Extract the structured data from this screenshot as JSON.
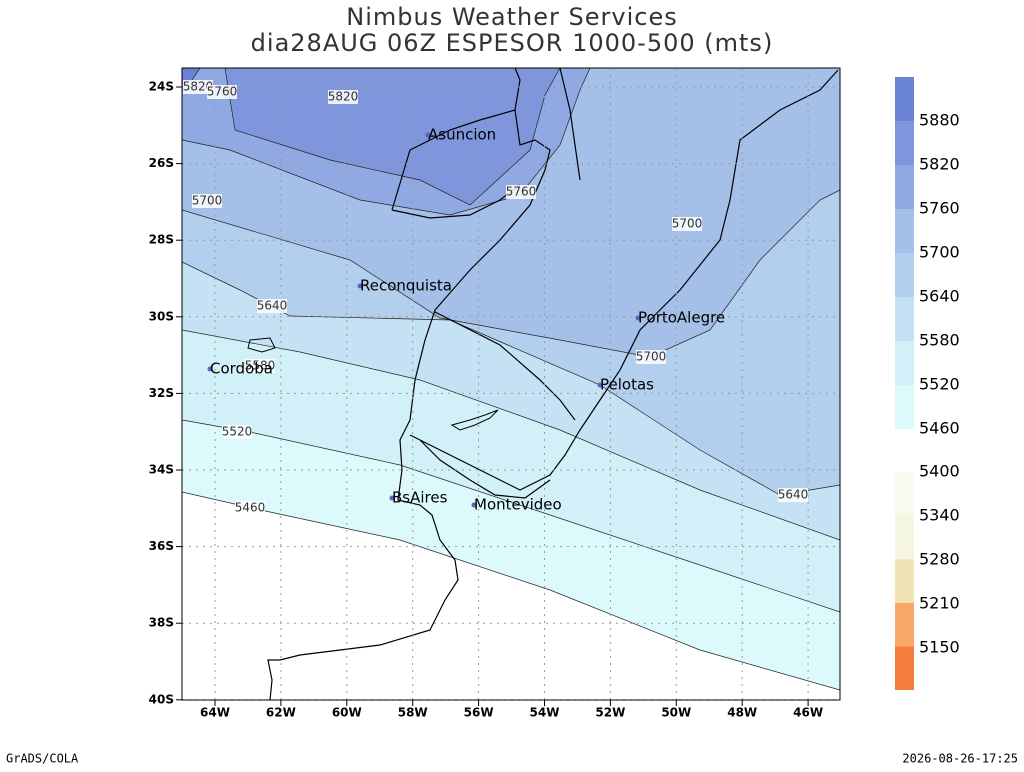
{
  "title": {
    "line1": "Nimbus Weather Services",
    "line2": "dia28AUG 06Z ESPESOR 1000-500 (mts)"
  },
  "lat_labels": [
    "24S",
    "26S",
    "28S",
    "30S",
    "32S",
    "34S",
    "36S",
    "38S",
    "40S"
  ],
  "lon_labels": [
    "64W",
    "62W",
    "60W",
    "58W",
    "56W",
    "54W",
    "52W",
    "50W",
    "48W",
    "46W"
  ],
  "cities": [
    {
      "name": "Asuncion"
    },
    {
      "name": "Reconquista"
    },
    {
      "name": "Cordoba"
    },
    {
      "name": "PortoAlegre"
    },
    {
      "name": "Pelotas"
    },
    {
      "name": "BsAires"
    },
    {
      "name": "Montevideo"
    }
  ],
  "contour_labels": [
    "5820",
    "5760",
    "5820",
    "5700",
    "5760",
    "5700",
    "5640",
    "5580",
    "5700",
    "5520",
    "5460",
    "5640"
  ],
  "colorbar": {
    "upper": [
      5880,
      5820,
      5760,
      5700,
      5640,
      5580,
      5520,
      5460
    ],
    "lower": [
      5400,
      5340,
      5280,
      5210,
      5150
    ]
  },
  "footer": {
    "left": "GrADS/COLA",
    "right": "2026-08-26-17:25"
  }
}
